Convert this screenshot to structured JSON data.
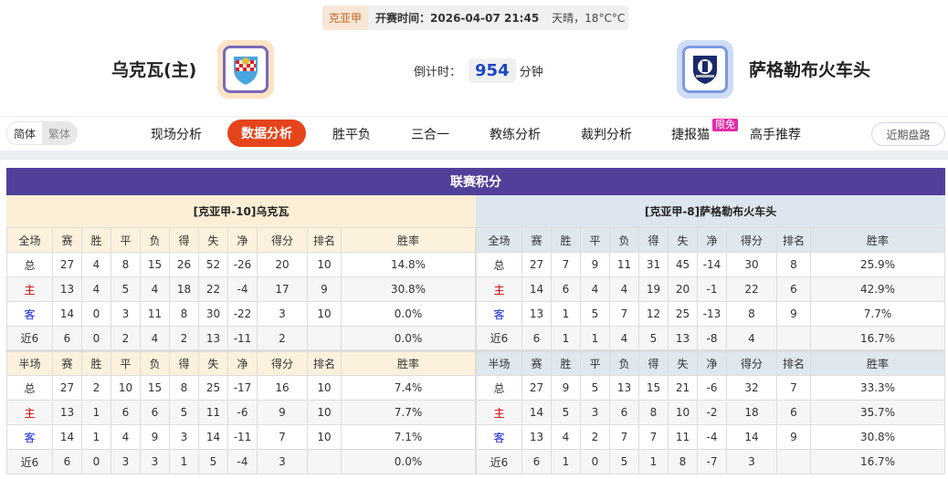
{
  "match": {
    "league": "克亚甲",
    "kickoff_label": "开赛时间：",
    "kickoff": "2026-04-07 21:45",
    "weather": "天晴，18°C°C",
    "home": "乌克瓦(主)",
    "away": "萨格勒布火车头",
    "countdown_label": "倒计时：",
    "countdown": "954",
    "countdown_unit": "分钟"
  },
  "colors": {
    "accent": "#e6441a",
    "title_bar": "#513f9a",
    "home_row": "#dd0000",
    "away_row": "#1626d8"
  },
  "lang": {
    "simplified": "简体",
    "traditional": "繁体"
  },
  "nav": {
    "items": [
      "现场分析",
      "数据分析",
      "胜平负",
      "三合一",
      "教练分析",
      "裁判分析",
      "捷报猫",
      "高手推荐"
    ],
    "active": "数据分析",
    "free_badge": "限免",
    "recent": "近期盘路"
  },
  "standings": {
    "title": "联赛积分",
    "columns": [
      "赛",
      "胜",
      "平",
      "负",
      "得",
      "失",
      "净",
      "得分",
      "排名",
      "胜率"
    ],
    "full_label": "全场",
    "half_label": "半场",
    "home": {
      "header": "[克亚甲-10]乌克瓦",
      "full": [
        [
          "总",
          "27",
          "4",
          "8",
          "15",
          "26",
          "52",
          "-26",
          "20",
          "10",
          "14.8%"
        ],
        [
          "主",
          "13",
          "4",
          "5",
          "4",
          "18",
          "22",
          "-4",
          "17",
          "9",
          "30.8%"
        ],
        [
          "客",
          "14",
          "0",
          "3",
          "11",
          "8",
          "30",
          "-22",
          "3",
          "10",
          "0.0%"
        ],
        [
          "近6",
          "6",
          "0",
          "2",
          "4",
          "2",
          "13",
          "-11",
          "2",
          "",
          "0.0%"
        ]
      ],
      "half": [
        [
          "总",
          "27",
          "2",
          "10",
          "15",
          "8",
          "25",
          "-17",
          "16",
          "10",
          "7.4%"
        ],
        [
          "主",
          "13",
          "1",
          "6",
          "6",
          "5",
          "11",
          "-6",
          "9",
          "10",
          "7.7%"
        ],
        [
          "客",
          "14",
          "1",
          "4",
          "9",
          "3",
          "14",
          "-11",
          "7",
          "10",
          "7.1%"
        ],
        [
          "近6",
          "6",
          "0",
          "3",
          "3",
          "1",
          "5",
          "-4",
          "3",
          "",
          "0.0%"
        ]
      ]
    },
    "away": {
      "header": "[克亚甲-8]萨格勒布火车头",
      "full": [
        [
          "总",
          "27",
          "7",
          "9",
          "11",
          "31",
          "45",
          "-14",
          "30",
          "8",
          "25.9%"
        ],
        [
          "主",
          "14",
          "6",
          "4",
          "4",
          "19",
          "20",
          "-1",
          "22",
          "6",
          "42.9%"
        ],
        [
          "客",
          "13",
          "1",
          "5",
          "7",
          "12",
          "25",
          "-13",
          "8",
          "9",
          "7.7%"
        ],
        [
          "近6",
          "6",
          "1",
          "1",
          "4",
          "5",
          "13",
          "-8",
          "4",
          "",
          "16.7%"
        ]
      ],
      "half": [
        [
          "总",
          "27",
          "9",
          "5",
          "13",
          "15",
          "21",
          "-6",
          "32",
          "7",
          "33.3%"
        ],
        [
          "主",
          "14",
          "5",
          "3",
          "6",
          "8",
          "10",
          "-2",
          "18",
          "6",
          "35.7%"
        ],
        [
          "客",
          "13",
          "4",
          "2",
          "7",
          "7",
          "11",
          "-4",
          "14",
          "9",
          "30.8%"
        ],
        [
          "近6",
          "6",
          "1",
          "0",
          "5",
          "1",
          "8",
          "-7",
          "3",
          "",
          "16.7%"
        ]
      ]
    }
  }
}
